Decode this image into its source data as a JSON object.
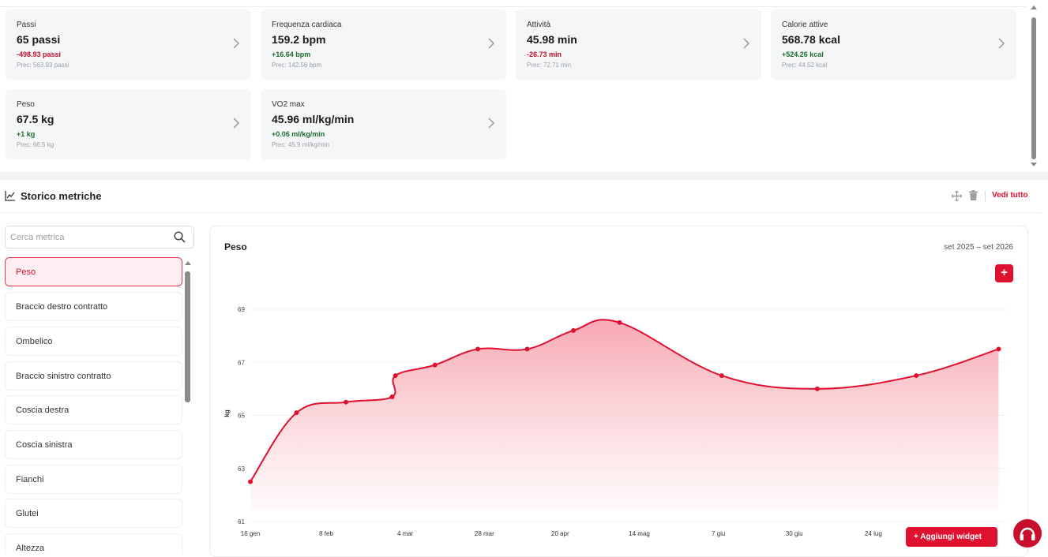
{
  "cards": [
    {
      "label": "Passi",
      "value": "65 passi",
      "delta": "-498.93 passi",
      "delta_type": "neg",
      "prev": "Prec: 563.93 passi"
    },
    {
      "label": "Frequenza cardiaca",
      "value": "159.2 bpm",
      "delta": "+16.64 bpm",
      "delta_type": "pos",
      "prev": "Prec: 142.56 bpm"
    },
    {
      "label": "Attività",
      "value": "45.98 min",
      "delta": "-26.73 min",
      "delta_type": "neg",
      "prev": "Prec: 72.71 min"
    },
    {
      "label": "Calorie attive",
      "value": "568.78 kcal",
      "delta": "+524.26 kcal",
      "delta_type": "pos",
      "prev": "Prec: 44.52 kcal"
    },
    {
      "label": "Peso",
      "value": "67.5 kg",
      "delta": "+1 kg",
      "delta_type": "pos",
      "prev": "Prec: 66.5 kg"
    },
    {
      "label": "VO2 max",
      "value": "45.96 ml/kg/min",
      "delta": "+0.06 ml/kg/min",
      "delta_type": "pos",
      "prev": "Prec: 45.9 ml/kg/min"
    }
  ],
  "section": {
    "title": "Storico metriche",
    "see_all": "Vedi tutto"
  },
  "search": {
    "placeholder": "Cerca metrica",
    "value": ""
  },
  "metrics": [
    "Peso",
    "Braccio destro contratto",
    "Ombelico",
    "Braccio sinistro contratto",
    "Coscia destra",
    "Coscia sinistra",
    "Fianchi",
    "Glutei",
    "Altezza"
  ],
  "active_metric": "Peso",
  "chart": {
    "title": "Peso",
    "range": "set 2025 – set 2026",
    "add_label": "+"
  },
  "chart_data": {
    "type": "area",
    "ylabel": "kg",
    "ylim": [
      61,
      69
    ],
    "y_ticks": [
      "61",
      "63",
      "65",
      "67",
      "69"
    ],
    "x_ticks": [
      "16 gen",
      "8 feb",
      "4 mar",
      "28 mar",
      "20 apr",
      "14 mag",
      "7 giu",
      "30 giu",
      "24 lug"
    ],
    "series": [
      {
        "values": [
          {
            "date": "16 gen",
            "y": 62.5
          },
          {
            "date": "30 gen",
            "y": 65.1
          },
          {
            "date": "14 feb",
            "y": 65.5
          },
          {
            "date": "28 feb",
            "y": 65.7
          },
          {
            "date": "1 mar",
            "y": 66.5
          },
          {
            "date": "13 mar",
            "y": 66.9
          },
          {
            "date": "26 mar",
            "y": 67.5
          },
          {
            "date": "10 apr",
            "y": 67.5
          },
          {
            "date": "24 apr",
            "y": 68.2
          },
          {
            "date": "8 mag",
            "y": 68.5
          },
          {
            "date": "8 giu",
            "y": 66.5
          },
          {
            "date": "7 lug",
            "y": 66.0
          },
          {
            "date": "6 ago",
            "y": 66.5
          },
          {
            "date": "31 ago",
            "y": 67.5
          }
        ]
      }
    ],
    "colors": {
      "line": "#e0102f",
      "fill_top": "#f7a3ae",
      "fill_bottom": "#fff5f6"
    },
    "grid": true
  },
  "buttons": {
    "add_widget": "+ Aggiungi widget"
  },
  "colors": {
    "accent": "#e0102f",
    "positive": "#1d6b2f",
    "negative": "#c0102c"
  }
}
